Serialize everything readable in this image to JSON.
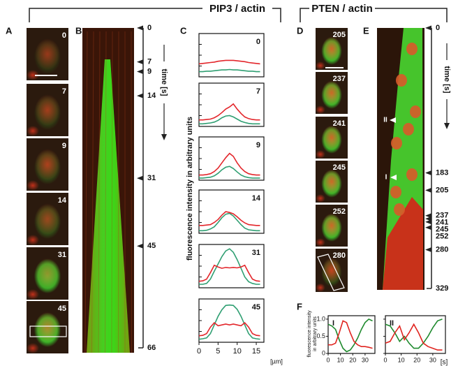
{
  "headings": [
    "PIP3 / actin",
    "PTEN / actin"
  ],
  "panel_labels": [
    "A",
    "B",
    "C",
    "D",
    "E",
    "F"
  ],
  "panel_a": {
    "frames": [
      "0",
      "7",
      "9",
      "14",
      "31",
      "45"
    ]
  },
  "panel_b": {
    "time_label": "time [s]",
    "ylim": [
      0,
      66
    ],
    "ticks": [
      0,
      7,
      9,
      14,
      31,
      45,
      66
    ]
  },
  "panel_c": {
    "y_label": "fluorescence intensity in arbitrary units",
    "x_unit": "[µm]",
    "xlim": [
      0,
      17
    ],
    "ylim": [
      0,
      1
    ],
    "xticks": [
      0,
      5,
      10,
      15
    ],
    "x": [
      0,
      1,
      2,
      3,
      4,
      5,
      6,
      7,
      8,
      9,
      10,
      11,
      12,
      13,
      14,
      15,
      16
    ],
    "colors": {
      "red": "#e3262b",
      "green": "#2f9f72"
    },
    "plots": [
      {
        "label": "0",
        "red": [
          0.3,
          0.31,
          0.32,
          0.33,
          0.34,
          0.36,
          0.37,
          0.38,
          0.38,
          0.38,
          0.37,
          0.36,
          0.35,
          0.33,
          0.32,
          0.31,
          0.3
        ],
        "green": [
          0.12,
          0.12,
          0.13,
          0.13,
          0.14,
          0.15,
          0.16,
          0.16,
          0.17,
          0.16,
          0.16,
          0.15,
          0.14,
          0.13,
          0.13,
          0.12,
          0.12
        ]
      },
      {
        "label": "7",
        "red": [
          0.15,
          0.15,
          0.16,
          0.17,
          0.2,
          0.25,
          0.32,
          0.4,
          0.45,
          0.52,
          0.4,
          0.3,
          0.22,
          0.18,
          0.16,
          0.15,
          0.15
        ],
        "green": [
          0.06,
          0.06,
          0.07,
          0.08,
          0.1,
          0.14,
          0.2,
          0.24,
          0.25,
          0.22,
          0.17,
          0.12,
          0.09,
          0.07,
          0.06,
          0.06,
          0.06
        ]
      },
      {
        "label": "9",
        "red": [
          0.12,
          0.12,
          0.13,
          0.15,
          0.2,
          0.28,
          0.4,
          0.52,
          0.62,
          0.55,
          0.4,
          0.28,
          0.2,
          0.15,
          0.13,
          0.12,
          0.12
        ],
        "green": [
          0.05,
          0.05,
          0.06,
          0.07,
          0.1,
          0.16,
          0.24,
          0.3,
          0.32,
          0.27,
          0.19,
          0.12,
          0.08,
          0.06,
          0.05,
          0.05,
          0.05
        ]
      },
      {
        "label": "14",
        "red": [
          0.18,
          0.18,
          0.19,
          0.2,
          0.25,
          0.32,
          0.42,
          0.5,
          0.48,
          0.45,
          0.38,
          0.3,
          0.24,
          0.2,
          0.19,
          0.18,
          0.18
        ],
        "green": [
          0.06,
          0.06,
          0.07,
          0.1,
          0.15,
          0.25,
          0.36,
          0.44,
          0.46,
          0.4,
          0.3,
          0.2,
          0.12,
          0.08,
          0.07,
          0.06,
          0.06
        ]
      },
      {
        "label": "31",
        "red": [
          0.15,
          0.16,
          0.2,
          0.35,
          0.52,
          0.48,
          0.45,
          0.47,
          0.46,
          0.47,
          0.46,
          0.48,
          0.52,
          0.35,
          0.2,
          0.16,
          0.15
        ],
        "green": [
          0.08,
          0.08,
          0.1,
          0.2,
          0.38,
          0.55,
          0.72,
          0.85,
          0.9,
          0.82,
          0.65,
          0.45,
          0.25,
          0.14,
          0.1,
          0.08,
          0.08
        ]
      },
      {
        "label": "45",
        "red": [
          0.15,
          0.16,
          0.2,
          0.35,
          0.45,
          0.38,
          0.4,
          0.42,
          0.4,
          0.42,
          0.4,
          0.38,
          0.45,
          0.35,
          0.2,
          0.16,
          0.15
        ],
        "green": [
          0.07,
          0.08,
          0.1,
          0.2,
          0.4,
          0.6,
          0.75,
          0.85,
          0.86,
          0.85,
          0.76,
          0.6,
          0.4,
          0.2,
          0.1,
          0.08,
          0.07
        ]
      }
    ]
  },
  "panel_d": {
    "frames": [
      "205",
      "237",
      "241",
      "245",
      "252",
      "280"
    ]
  },
  "panel_e": {
    "time_label": "time [s]",
    "ylim": [
      0,
      329
    ],
    "ticks": [
      0,
      183,
      205,
      237,
      241,
      245,
      252,
      280,
      329
    ],
    "markers": [
      "II",
      "I"
    ]
  },
  "panel_f": {
    "y_label": [
      "fluorescence intensity",
      "in arbitrary units"
    ],
    "x_unit": "[s]",
    "xlim": [
      0,
      38
    ],
    "ylim": [
      0,
      1.1
    ],
    "xticks": [
      0,
      10,
      20,
      30
    ],
    "yticks": [
      0,
      0.5,
      {
        "value": 1,
        "label": "1.0"
      }
    ],
    "x": [
      0,
      3,
      6,
      9,
      12,
      15,
      18,
      21,
      24,
      27,
      30,
      33,
      36
    ],
    "colors": {
      "red": "#e0241f",
      "green": "#1f8a2e"
    },
    "plots": [
      {
        "label": "I",
        "green": [
          0.85,
          0.8,
          0.7,
          0.4,
          0.15,
          0.05,
          0.1,
          0.25,
          0.45,
          0.7,
          0.9,
          1.0,
          0.95
        ],
        "red": [
          0.25,
          0.25,
          0.3,
          0.6,
          0.95,
          0.9,
          0.6,
          0.35,
          0.25,
          0.2,
          0.2,
          0.18,
          0.15
        ]
      },
      {
        "label": "II",
        "green": [
          0.85,
          0.8,
          0.6,
          0.35,
          0.5,
          0.3,
          0.15,
          0.15,
          0.3,
          0.5,
          0.75,
          0.95,
          1.0
        ],
        "red": [
          0.3,
          0.35,
          0.6,
          0.8,
          0.4,
          0.6,
          0.85,
          0.6,
          0.3,
          0.2,
          0.15,
          0.1,
          0.1
        ]
      }
    ]
  }
}
